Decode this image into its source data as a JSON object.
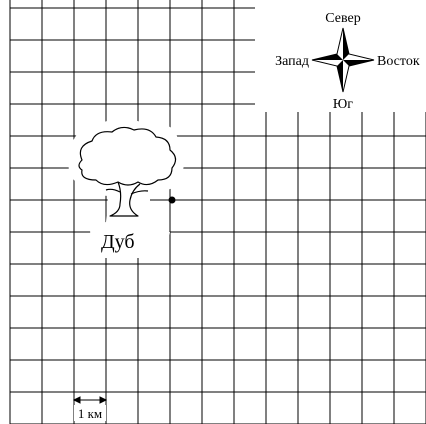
{
  "compass": {
    "north": "Север",
    "south": "Юг",
    "west": "Запад",
    "east": "Восток"
  },
  "landmark": {
    "label": "Дуб",
    "icon": "oak-tree-icon"
  },
  "scale": {
    "label": "1 км"
  },
  "colors": {
    "line": "#000000",
    "background": "#ffffff"
  }
}
